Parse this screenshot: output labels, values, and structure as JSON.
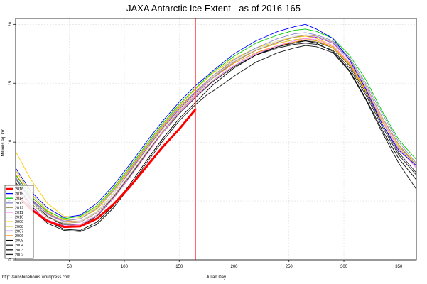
{
  "footer": {
    "credit": "http://sunshinehours.wordpress.com"
  },
  "chart_data": {
    "type": "line",
    "title": "JAXA Antarctic Ice Extent - as of 2016-165",
    "xlabel": "Julian Day",
    "ylabel": "Millions sq. km.",
    "xlim": [
      1,
      366
    ],
    "ylim": [
      0,
      20.5
    ],
    "x_ticks": [
      50,
      100,
      150,
      200,
      250,
      300,
      350
    ],
    "y_ticks": [
      0,
      5,
      10,
      15,
      20
    ],
    "grid": true,
    "legend_position": "bottom-left",
    "reference_lines": {
      "vertical_day": 165,
      "horizontal_value": 13.0
    },
    "colors": {
      "vline": "#ff4444",
      "hline": "#444444",
      "grid": "#dddddd"
    },
    "series": [
      {
        "name": "2016",
        "color": "#ff0000",
        "width": 3.0,
        "x": [
          1,
          15,
          30,
          45,
          60,
          75,
          90,
          105,
          120,
          135,
          150,
          165
        ],
        "y": [
          5.6,
          4.3,
          3.3,
          2.8,
          2.85,
          3.5,
          4.7,
          6.2,
          7.9,
          9.6,
          11.1,
          12.8
        ]
      },
      {
        "name": "2015",
        "color": "#0000ff",
        "width": 0.9,
        "x": [
          1,
          15,
          30,
          45,
          60,
          75,
          90,
          105,
          120,
          135,
          150,
          165,
          180,
          200,
          220,
          240,
          255,
          265,
          275,
          290,
          305,
          320,
          335,
          350,
          366
        ],
        "y": [
          7.8,
          5.8,
          4.4,
          3.6,
          3.8,
          4.8,
          6.3,
          8.1,
          10.0,
          11.8,
          13.4,
          14.8,
          16.0,
          17.5,
          18.6,
          19.4,
          19.8,
          20.0,
          19.6,
          18.8,
          17.0,
          14.5,
          11.5,
          9.3,
          8.0
        ]
      },
      {
        "name": "2014",
        "color": "#00cc00",
        "width": 0.9,
        "x": [
          1,
          15,
          30,
          45,
          60,
          75,
          90,
          105,
          120,
          135,
          150,
          165,
          180,
          200,
          220,
          240,
          255,
          265,
          275,
          290,
          305,
          320,
          335,
          350,
          366
        ],
        "y": [
          7.2,
          5.4,
          4.1,
          3.5,
          3.7,
          4.6,
          6.1,
          7.9,
          9.8,
          11.6,
          13.2,
          14.6,
          15.9,
          17.3,
          18.4,
          19.1,
          19.5,
          19.6,
          19.4,
          18.8,
          17.4,
          15.3,
          12.6,
          10.2,
          8.5
        ]
      },
      {
        "name": "2013",
        "color": "#8888cc",
        "width": 0.9,
        "x": [
          1,
          15,
          30,
          45,
          60,
          75,
          90,
          105,
          120,
          135,
          150,
          165,
          180,
          200,
          220,
          240,
          255,
          265,
          275,
          290,
          305,
          320,
          335,
          350,
          366
        ],
        "y": [
          7.0,
          5.1,
          3.9,
          3.3,
          3.5,
          4.4,
          5.9,
          7.7,
          9.6,
          11.4,
          13.0,
          14.3,
          15.6,
          17.0,
          18.0,
          18.8,
          19.2,
          19.3,
          19.1,
          18.6,
          17.2,
          15.0,
          12.4,
          10.0,
          8.2
        ]
      },
      {
        "name": "2012",
        "color": "#aa9966",
        "width": 0.9,
        "x": [
          1,
          15,
          30,
          45,
          60,
          75,
          90,
          105,
          120,
          135,
          150,
          165,
          180,
          200,
          220,
          240,
          255,
          265,
          275,
          290,
          305,
          320,
          335,
          350,
          366
        ],
        "y": [
          6.5,
          4.8,
          3.6,
          3.1,
          3.2,
          4.0,
          5.4,
          7.2,
          9.1,
          10.9,
          12.6,
          14.0,
          15.4,
          16.8,
          17.8,
          18.5,
          18.9,
          19.1,
          19.0,
          18.5,
          17.1,
          14.8,
          12.1,
          9.8,
          8.0
        ]
      },
      {
        "name": "2011",
        "color": "#ff88ff",
        "width": 0.9,
        "x": [
          1,
          15,
          30,
          45,
          60,
          75,
          90,
          105,
          120,
          135,
          150,
          165,
          180,
          200,
          220,
          240,
          255,
          265,
          275,
          290,
          305,
          320,
          335,
          350,
          366
        ],
        "y": [
          6.2,
          4.5,
          3.4,
          2.9,
          3.0,
          3.8,
          5.2,
          7.0,
          8.9,
          10.8,
          12.5,
          13.9,
          15.2,
          16.5,
          17.5,
          18.2,
          18.6,
          18.8,
          18.7,
          18.2,
          16.8,
          14.6,
          11.8,
          9.4,
          7.8
        ]
      },
      {
        "name": "2010",
        "color": "#dddddd",
        "width": 0.9,
        "x": [
          1,
          15,
          30,
          45,
          60,
          75,
          90,
          105,
          120,
          135,
          150,
          165,
          180,
          200,
          220,
          240,
          255,
          265,
          275,
          290,
          305,
          320,
          335,
          350,
          366
        ],
        "y": [
          6.8,
          5.0,
          3.8,
          3.2,
          3.3,
          4.1,
          5.6,
          7.4,
          9.3,
          11.1,
          12.7,
          14.1,
          15.5,
          16.9,
          17.9,
          18.6,
          19.0,
          19.1,
          19.0,
          18.5,
          17.0,
          14.7,
          12.0,
          9.6,
          7.9
        ]
      },
      {
        "name": "2009",
        "color": "#ffcc00",
        "width": 0.9,
        "x": [
          1,
          15,
          30,
          45,
          60,
          75,
          90,
          105,
          120,
          135,
          150,
          165,
          180,
          200,
          220,
          240,
          255,
          265,
          275,
          290,
          305,
          320,
          335,
          350,
          366
        ],
        "y": [
          9.2,
          6.8,
          4.8,
          3.7,
          3.6,
          4.5,
          6.0,
          7.8,
          9.7,
          11.5,
          13.1,
          14.5,
          15.8,
          17.1,
          18.0,
          18.6,
          18.9,
          19.0,
          18.8,
          18.2,
          16.8,
          14.5,
          11.9,
          9.7,
          8.2
        ]
      },
      {
        "name": "2008",
        "color": "#ddbb00",
        "width": 0.9,
        "x": [
          1,
          15,
          30,
          45,
          60,
          75,
          90,
          105,
          120,
          135,
          150,
          165,
          180,
          200,
          220,
          240,
          255,
          265,
          275,
          290,
          305,
          320,
          335,
          350,
          366
        ],
        "y": [
          7.6,
          5.6,
          4.2,
          3.4,
          3.5,
          4.3,
          5.8,
          7.6,
          9.5,
          11.3,
          12.9,
          14.3,
          15.6,
          16.9,
          17.8,
          18.4,
          18.7,
          18.8,
          18.6,
          18.0,
          16.6,
          14.3,
          11.7,
          9.5,
          8.0
        ]
      },
      {
        "name": "2007",
        "color": "#9933cc",
        "width": 0.9,
        "x": [
          1,
          15,
          30,
          45,
          60,
          75,
          90,
          105,
          120,
          135,
          150,
          165,
          180,
          200,
          220,
          240,
          255,
          265,
          275,
          290,
          305,
          320,
          335,
          350,
          366
        ],
        "y": [
          7.0,
          5.2,
          3.9,
          3.2,
          3.3,
          4.1,
          5.6,
          7.5,
          9.4,
          11.2,
          12.8,
          14.2,
          15.5,
          16.8,
          17.8,
          18.5,
          18.9,
          19.0,
          18.9,
          18.4,
          17.0,
          14.7,
          12.0,
          9.7,
          8.0
        ]
      },
      {
        "name": "2006",
        "color": "#ff8800",
        "width": 0.9,
        "x": [
          1,
          15,
          30,
          45,
          60,
          75,
          90,
          105,
          120,
          135,
          150,
          165,
          180,
          200,
          220,
          240,
          255,
          265,
          275,
          290,
          305,
          320,
          335,
          350,
          366
        ],
        "y": [
          7.3,
          5.4,
          4.0,
          3.3,
          3.3,
          4.1,
          5.6,
          7.4,
          9.3,
          11.1,
          12.7,
          14.1,
          15.4,
          16.7,
          17.6,
          18.2,
          18.5,
          18.7,
          18.6,
          18.1,
          16.7,
          14.4,
          11.8,
          9.5,
          7.9
        ]
      },
      {
        "name": "2005",
        "color": "#000000",
        "width": 0.9,
        "x": [
          1,
          15,
          30,
          45,
          60,
          75,
          90,
          105,
          120,
          135,
          150,
          165,
          180,
          200,
          220,
          240,
          255,
          265,
          275,
          290,
          305,
          320,
          335,
          350,
          366
        ],
        "y": [
          6.6,
          4.6,
          3.3,
          2.6,
          2.5,
          3.2,
          4.6,
          6.4,
          8.4,
          10.3,
          12.0,
          13.4,
          14.8,
          16.3,
          17.4,
          18.1,
          18.5,
          18.6,
          18.4,
          17.7,
          16.1,
          13.7,
          11.0,
          8.6,
          6.8
        ]
      },
      {
        "name": "2004",
        "color": "#333333",
        "width": 0.9,
        "x": [
          1,
          15,
          30,
          45,
          60,
          75,
          90,
          105,
          120,
          135,
          150,
          165,
          180,
          200,
          220,
          240,
          255,
          265,
          275,
          290,
          305,
          320,
          335,
          350,
          366
        ],
        "y": [
          6.9,
          5.0,
          3.7,
          3.0,
          3.0,
          3.8,
          5.3,
          7.1,
          9.0,
          10.9,
          12.5,
          13.9,
          15.2,
          16.5,
          17.5,
          18.1,
          18.4,
          18.6,
          18.5,
          18.0,
          16.5,
          14.2,
          11.5,
          9.1,
          7.4
        ]
      },
      {
        "name": "2003",
        "color": "#111111",
        "width": 0.9,
        "x": [
          1,
          15,
          30,
          45,
          60,
          75,
          90,
          105,
          120,
          135,
          150,
          165,
          175,
          185,
          200,
          220,
          240,
          255,
          265,
          275,
          290,
          305,
          320,
          335,
          350,
          366
        ],
        "y": [
          6.4,
          4.4,
          3.1,
          2.5,
          2.4,
          3.0,
          4.4,
          6.2,
          8.2,
          10.1,
          11.8,
          13.2,
          14.0,
          14.6,
          15.6,
          16.8,
          17.6,
          18.0,
          18.2,
          18.1,
          17.6,
          16.0,
          13.6,
          10.8,
          8.2,
          6.0
        ]
      },
      {
        "name": "2002",
        "color": "#222222",
        "width": 0.9,
        "x": [
          1,
          15,
          30,
          45,
          60,
          75,
          90,
          105,
          120,
          135,
          150,
          165,
          180,
          200,
          220,
          240,
          255,
          265,
          275,
          290,
          305,
          320,
          335,
          350,
          366
        ],
        "y": [
          7.0,
          5.1,
          3.7,
          2.9,
          2.9,
          3.7,
          5.2,
          7.0,
          9.0,
          10.8,
          12.4,
          13.8,
          15.1,
          16.4,
          17.4,
          18.0,
          18.3,
          18.4,
          18.3,
          17.8,
          16.3,
          14.0,
          11.3,
          8.9,
          7.2
        ]
      }
    ]
  }
}
